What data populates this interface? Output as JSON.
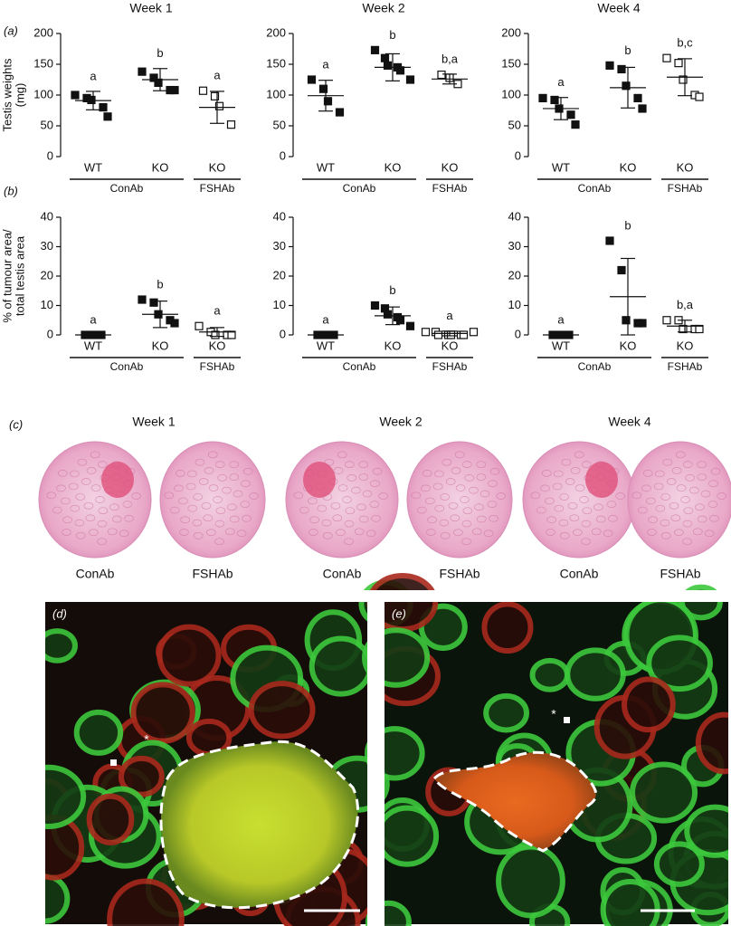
{
  "chart_data": [
    {
      "type": "dot",
      "panel": "(a)",
      "title": "Week 1",
      "ylabel": [
        "Testis weights",
        "(mg)"
      ],
      "categories": [
        "WT",
        "KO",
        "KO"
      ],
      "groups": [
        "ConAb",
        "ConAb",
        "FSHAb"
      ],
      "markers": [
        "filled",
        "filled",
        "open"
      ],
      "color": "#111111",
      "points": [
        [
          100,
          95,
          92,
          80,
          65
        ],
        [
          138,
          128,
          120,
          108,
          108
        ],
        [
          107,
          98,
          82,
          52
        ]
      ],
      "means": [
        91,
        125,
        80
      ],
      "sds": [
        15,
        18,
        26
      ],
      "letters": [
        "a",
        "b",
        "a"
      ],
      "ylim": [
        0,
        200
      ],
      "yticks": [
        0,
        50,
        100,
        150,
        200
      ]
    },
    {
      "type": "dot",
      "title": "Week 2",
      "categories": [
        "WT",
        "KO",
        "KO"
      ],
      "groups": [
        "ConAb",
        "ConAb",
        "FSHAb"
      ],
      "markers": [
        "filled",
        "filled",
        "open"
      ],
      "color": "#111111",
      "points": [
        [
          125,
          110,
          90,
          72
        ],
        [
          173,
          160,
          148,
          145,
          140,
          125
        ],
        [
          133,
          128,
          118
        ]
      ],
      "means": [
        99,
        145,
        126
      ],
      "sds": [
        25,
        22,
        8
      ],
      "letters": [
        "a",
        "b",
        "b,a"
      ],
      "ylim": [
        0,
        200
      ],
      "yticks": [
        0,
        50,
        100,
        150,
        200
      ]
    },
    {
      "type": "dot",
      "title": "Week 4",
      "categories": [
        "WT",
        "KO",
        "KO"
      ],
      "groups": [
        "ConAb",
        "ConAb",
        "FSHAb"
      ],
      "markers": [
        "filled",
        "filled",
        "open"
      ],
      "color": "#111111",
      "points": [
        [
          95,
          92,
          78,
          68,
          52
        ],
        [
          148,
          142,
          115,
          95,
          78
        ],
        [
          160,
          152,
          125,
          100,
          97
        ]
      ],
      "means": [
        78,
        112,
        129
      ],
      "sds": [
        18,
        33,
        30
      ],
      "letters": [
        "a",
        "b",
        "b,c"
      ],
      "ylim": [
        0,
        200
      ],
      "yticks": [
        0,
        50,
        100,
        150,
        200
      ]
    },
    {
      "type": "dot",
      "panel": "(b)",
      "ylabel": [
        "% of tumour area/",
        "total testis area"
      ],
      "categories": [
        "WT",
        "KO",
        "KO"
      ],
      "groups": [
        "ConAb",
        "ConAb",
        "FSHAb"
      ],
      "markers": [
        "filled",
        "filled",
        "open"
      ],
      "color": "#111111",
      "points": [
        [
          0,
          0,
          0
        ],
        [
          12,
          11,
          7,
          5,
          4
        ],
        [
          3,
          1,
          0,
          0,
          0
        ]
      ],
      "means": [
        0,
        7,
        1
      ],
      "sds": [
        0,
        4.5,
        1.5
      ],
      "letters": [
        "a",
        "b",
        "a"
      ],
      "ylim": [
        0,
        40
      ],
      "yticks": [
        0,
        10,
        20,
        30,
        40
      ]
    },
    {
      "type": "dot",
      "categories": [
        "WT",
        "KO",
        "KO"
      ],
      "groups": [
        "ConAb",
        "ConAb",
        "FSHAb"
      ],
      "markers": [
        "filled",
        "filled",
        "open"
      ],
      "color": "#111111",
      "points": [
        [
          0,
          0,
          0
        ],
        [
          10,
          9,
          7,
          6,
          5,
          3
        ],
        [
          1,
          1,
          0,
          0,
          0,
          0,
          0,
          1
        ]
      ],
      "means": [
        0,
        6.5,
        0.5
      ],
      "sds": [
        0,
        3,
        0.8
      ],
      "letters": [
        "a",
        "b",
        "a"
      ],
      "ylim": [
        0,
        40
      ],
      "yticks": [
        0,
        10,
        20,
        30,
        40
      ]
    },
    {
      "type": "dot",
      "categories": [
        "WT",
        "KO",
        "KO"
      ],
      "groups": [
        "ConAb",
        "ConAb",
        "FSHAb"
      ],
      "markers": [
        "filled",
        "filled",
        "open"
      ],
      "color": "#111111",
      "points": [
        [
          0,
          0,
          0
        ],
        [
          32,
          22,
          5,
          4,
          4
        ],
        [
          5,
          5,
          2,
          2,
          2
        ]
      ],
      "means": [
        0,
        13,
        3
      ],
      "sds": [
        0,
        13,
        2
      ],
      "letters": [
        "a",
        "b",
        "b,a"
      ],
      "ylim": [
        0,
        40
      ],
      "yticks": [
        0,
        10,
        20,
        30,
        40
      ]
    }
  ],
  "histology": {
    "panel": "(c)",
    "columns": [
      {
        "title": "Week 1",
        "images": [
          "ConAb",
          "FSHAb"
        ]
      },
      {
        "title": "Week 2",
        "images": [
          "ConAb",
          "FSHAb"
        ]
      },
      {
        "title": "Week 4",
        "images": [
          "ConAb",
          "FSHAb"
        ]
      }
    ]
  },
  "fluorescence": [
    {
      "panel": "(d)",
      "annotation": "*"
    },
    {
      "panel": "(e)",
      "annotation": "*"
    }
  ]
}
